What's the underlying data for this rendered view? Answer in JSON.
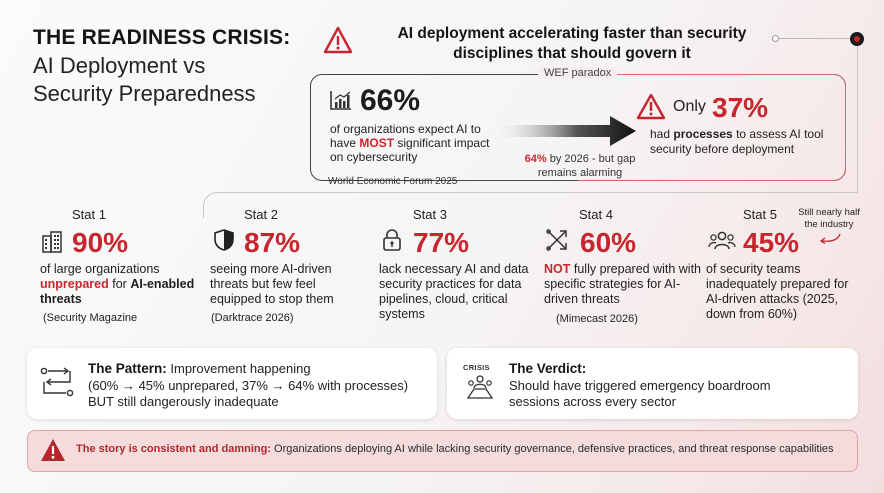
{
  "title": {
    "line1": "THE READINESS CRISIS:",
    "line2": "AI Deployment vs",
    "line3": "Security Preparedness"
  },
  "header": {
    "text": "AI deployment accelerating faster than security disciplines that should govern it"
  },
  "wef": {
    "label": "WEF paradox",
    "stat_66": "66%",
    "stat_66_pre": "of organizations expect AI to have ",
    "stat_66_emph": "MOST",
    "stat_66_post": " significant impact on cybersecurity",
    "future_emph": "64%",
    "future_text": " by 2026 - but gap remains alarming",
    "source": "World Economic Forum 2025",
    "only_label": "Only",
    "stat_37": "37%",
    "stat_37_pre": "had ",
    "stat_37_emph": "processes",
    "stat_37_post": " to assess AI tool security before deployment"
  },
  "stats": [
    {
      "label": "Stat 1",
      "icon": "building-icon",
      "value": "90%",
      "text_pre": "of large organizations ",
      "emph": "unprepared",
      "text_post": " for ",
      "bold": "AI-enabled threats",
      "source": "(Security Magazine"
    },
    {
      "label": "Stat 2",
      "icon": "shield-icon",
      "value": "87%",
      "text": "seeing more AI-driven threats but few feel equipped to stop them",
      "source": "(Darktrace 2026)"
    },
    {
      "label": "Stat 3",
      "icon": "lock-icon",
      "value": "77%",
      "text": "lack necessary AI and data security practices for data pipelines, cloud, critical systems",
      "source": ""
    },
    {
      "label": "Stat 4",
      "icon": "crossed-arrows-icon",
      "value": "60%",
      "emph": "NOT",
      "text": " fully prepared with with specific strategies for AI-driven threats",
      "source": "(Mimecast 2026)"
    },
    {
      "label": "Stat 5",
      "icon": "team-icon",
      "value": "45%",
      "text": "of security teams inadequately prepared for AI-driven attacks (2025, down from 60%)",
      "source": "",
      "note": "Still nearly half the industry"
    }
  ],
  "pattern": {
    "title": "The Pattern:",
    "title_rest": " Improvement happening",
    "line2": "(60% → 45% unprepared, 37% → 64% with processes)",
    "line3": "BUT still dangerously inadequate"
  },
  "verdict": {
    "icon_label": "CRISIS",
    "title": "The Verdict:",
    "line2": "Should have triggered emergency boardroom",
    "line3": "sessions across every sector"
  },
  "banner": {
    "bold": "The story is consistent and damning:",
    "text": " Organizations deploying AI while lacking security governance, defensive practices, and threat response capabilities"
  },
  "colors": {
    "accent": "#c8262e",
    "banner_bg": "#f4dcdc",
    "text": "#1f1f1f"
  }
}
